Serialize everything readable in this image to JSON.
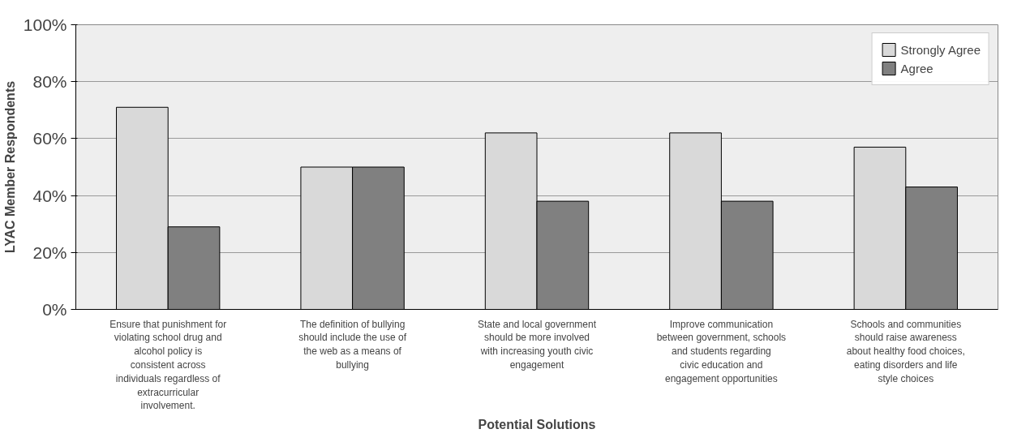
{
  "chart_data": {
    "type": "bar",
    "xlabel": "Potential Solutions",
    "ylabel": "LYAC Member Respondents",
    "categories": [
      "Ensure that punishment for violating school drug and alcohol policy is consistent across individuals regardless of extracurricular involvement.",
      "The definition of bullying should include the use of the web as a means of bullying",
      "State and local government should be more involved with increasing youth civic engagement",
      "Improve communication between government, schools and students regarding civic education and engagement opportunities",
      "Schools and communities should raise awareness about healthy food choices, eating disorders and life style choices"
    ],
    "series": [
      {
        "name": "Strongly Agree",
        "color": "#d9d9d9",
        "values": [
          71,
          50,
          62,
          62,
          57
        ]
      },
      {
        "name": "Agree",
        "color": "#808080",
        "values": [
          29,
          50,
          38,
          38,
          43
        ]
      }
    ],
    "ylim": [
      0,
      100
    ],
    "yticks": [
      {
        "value": 0,
        "label": "0%"
      },
      {
        "value": 20,
        "label": "20%"
      },
      {
        "value": 40,
        "label": "40%"
      },
      {
        "value": 60,
        "label": "60%"
      },
      {
        "value": 80,
        "label": "80%"
      },
      {
        "value": 100,
        "label": "100%"
      }
    ],
    "grid": "y",
    "legend": "top right"
  }
}
